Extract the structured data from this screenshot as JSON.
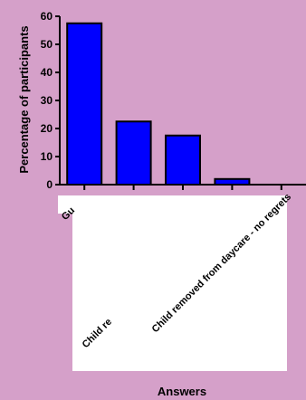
{
  "colors": {
    "background": "#d5a0c9",
    "bar_fill": "#0000ff",
    "bar_stroke": "#000000",
    "axis": "#000000",
    "occluder": "#ffffff"
  },
  "chart_data": {
    "type": "bar",
    "ylabel": "Percentage of participants",
    "xlabel": "Answers",
    "ylim": [
      0,
      60
    ],
    "yticks": [
      0,
      10,
      20,
      30,
      40,
      50,
      60
    ],
    "grid": false,
    "legend": "none",
    "categories": [
      "Gu",
      "",
      "",
      "Child re",
      "Child removed from daycare - no regrets"
    ],
    "values": [
      57.5,
      22.5,
      17.5,
      2,
      0
    ]
  }
}
